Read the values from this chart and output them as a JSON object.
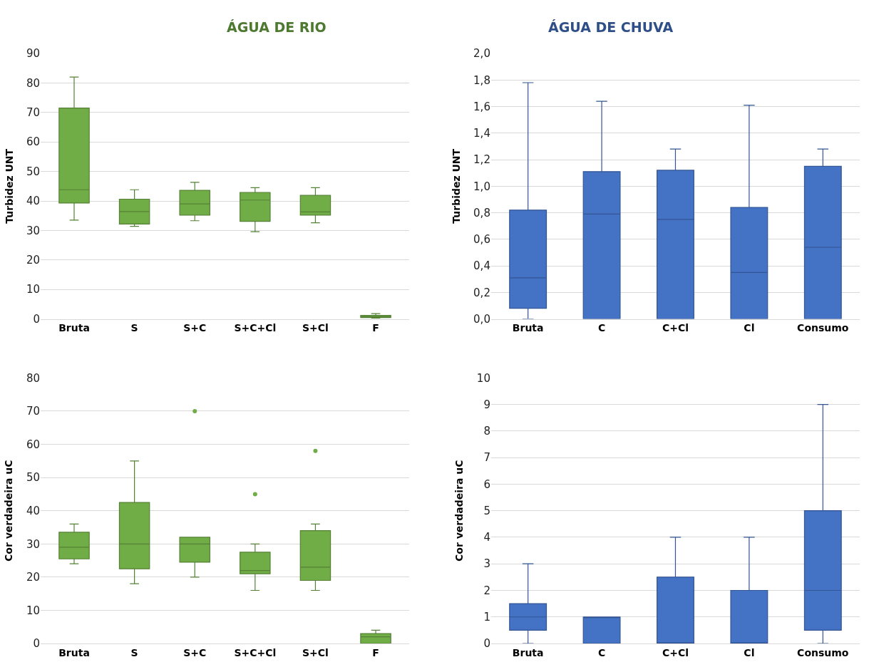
{
  "chart_data": [
    {
      "type": "box",
      "title": "ÁGUA DE RIO",
      "ylabel": "Turbidez UNT",
      "categories": [
        "Bruta",
        "S",
        "S+C",
        "S+C+Cl",
        "S+Cl",
        "F"
      ],
      "color": "#70ad47",
      "ylim": [
        0,
        90
      ],
      "yticks": [
        0,
        10,
        20,
        30,
        40,
        50,
        60,
        70,
        80,
        90
      ],
      "grid": "y",
      "boxes": [
        {
          "low": 33.5,
          "q1": 39.3,
          "median": 43.8,
          "q3": 71.5,
          "high": 82
        },
        {
          "low": 31.4,
          "q1": 32.2,
          "median": 36.4,
          "q3": 40.6,
          "high": 43.8
        },
        {
          "low": 33.3,
          "q1": 35.2,
          "median": 39,
          "q3": 43.6,
          "high": 46.3
        },
        {
          "low": 29.6,
          "q1": 33.1,
          "median": 40.3,
          "q3": 42.9,
          "high": 44.5
        },
        {
          "low": 32.6,
          "q1": 35.2,
          "median": 36.3,
          "q3": 41.9,
          "high": 44.5
        },
        {
          "low": 0.3,
          "q1": 0.5,
          "median": 0.8,
          "q3": 1.2,
          "high": 1.8
        }
      ]
    },
    {
      "type": "box",
      "title": "ÁGUA DE CHUVA",
      "ylabel": "Turbidez UNT",
      "categories": [
        "Bruta",
        "C",
        "C+Cl",
        "Cl",
        "Consumo"
      ],
      "color": "#4472c4",
      "ylim": [
        0,
        2
      ],
      "yticks": [
        {
          "value": 0,
          "label": "0,0"
        },
        {
          "value": 0.2,
          "label": "0,2"
        },
        {
          "value": 0.4,
          "label": "0,4"
        },
        {
          "value": 0.6,
          "label": "0,6"
        },
        {
          "value": 0.8,
          "label": "0,8"
        },
        {
          "value": 1.0,
          "label": "1,0"
        },
        {
          "value": 1.2,
          "label": "1,2"
        },
        {
          "value": 1.4,
          "label": "1,4"
        },
        {
          "value": 1.6,
          "label": "1,6"
        },
        {
          "value": 1.8,
          "label": "1,8"
        },
        {
          "value": 2.0,
          "label": "2,0"
        }
      ],
      "grid": "y",
      "boxes": [
        {
          "low": 0,
          "q1": 0.08,
          "median": 0.31,
          "q3": 0.82,
          "high": 1.78
        },
        {
          "low": 0,
          "q1": 0,
          "median": 0.79,
          "q3": 1.11,
          "high": 1.64
        },
        {
          "low": 0,
          "q1": 0,
          "median": 0.75,
          "q3": 1.12,
          "high": 1.28
        },
        {
          "low": 0,
          "q1": 0,
          "median": 0.35,
          "q3": 0.84,
          "high": 1.61
        },
        {
          "low": 0,
          "q1": 0,
          "median": 0.54,
          "q3": 1.15,
          "high": 1.28
        }
      ]
    },
    {
      "type": "box",
      "ylabel": "Cor verdadeira uC",
      "categories": [
        "Bruta",
        "S",
        "S+C",
        "S+C+Cl",
        "S+Cl",
        "F"
      ],
      "color": "#70ad47",
      "ylim": [
        0,
        80
      ],
      "yticks": [
        0,
        10,
        20,
        30,
        40,
        50,
        60,
        70,
        80
      ],
      "grid": "y",
      "boxes": [
        {
          "low": 24,
          "q1": 25.5,
          "median": 29,
          "q3": 33.5,
          "high": 36
        },
        {
          "low": 18,
          "q1": 22.5,
          "median": 30,
          "q3": 42.5,
          "high": 55
        },
        {
          "low": 20,
          "q1": 24.5,
          "median": 30,
          "q3": 32,
          "high": 32,
          "outliers": [
            70
          ]
        },
        {
          "low": 16,
          "q1": 21,
          "median": 22,
          "q3": 27.5,
          "high": 30,
          "outliers": [
            45
          ]
        },
        {
          "low": 16,
          "q1": 19,
          "median": 23,
          "q3": 34,
          "high": 36,
          "outliers": [
            58
          ]
        },
        {
          "low": 0,
          "q1": 0,
          "median": 2,
          "q3": 3,
          "high": 4
        }
      ]
    },
    {
      "type": "box",
      "ylabel": "Cor verdadeira uC",
      "categories": [
        "Bruta",
        "C",
        "C+Cl",
        "Cl",
        "Consumo"
      ],
      "color": "#4472c4",
      "ylim": [
        0,
        10
      ],
      "yticks": [
        0,
        1,
        2,
        3,
        4,
        5,
        6,
        7,
        8,
        9,
        10
      ],
      "grid": "y",
      "boxes": [
        {
          "low": 0,
          "q1": 0.5,
          "median": 1,
          "q3": 1.5,
          "high": 3
        },
        {
          "low": 0,
          "q1": 0,
          "median": 1,
          "q3": 1,
          "high": 1
        },
        {
          "low": 0,
          "q1": 0,
          "median": 0,
          "q3": 2.5,
          "high": 4
        },
        {
          "low": 0,
          "q1": 0,
          "median": 0,
          "q3": 2,
          "high": 4
        },
        {
          "low": 0,
          "q1": 0.5,
          "median": 2,
          "q3": 5,
          "high": 9
        }
      ]
    }
  ]
}
